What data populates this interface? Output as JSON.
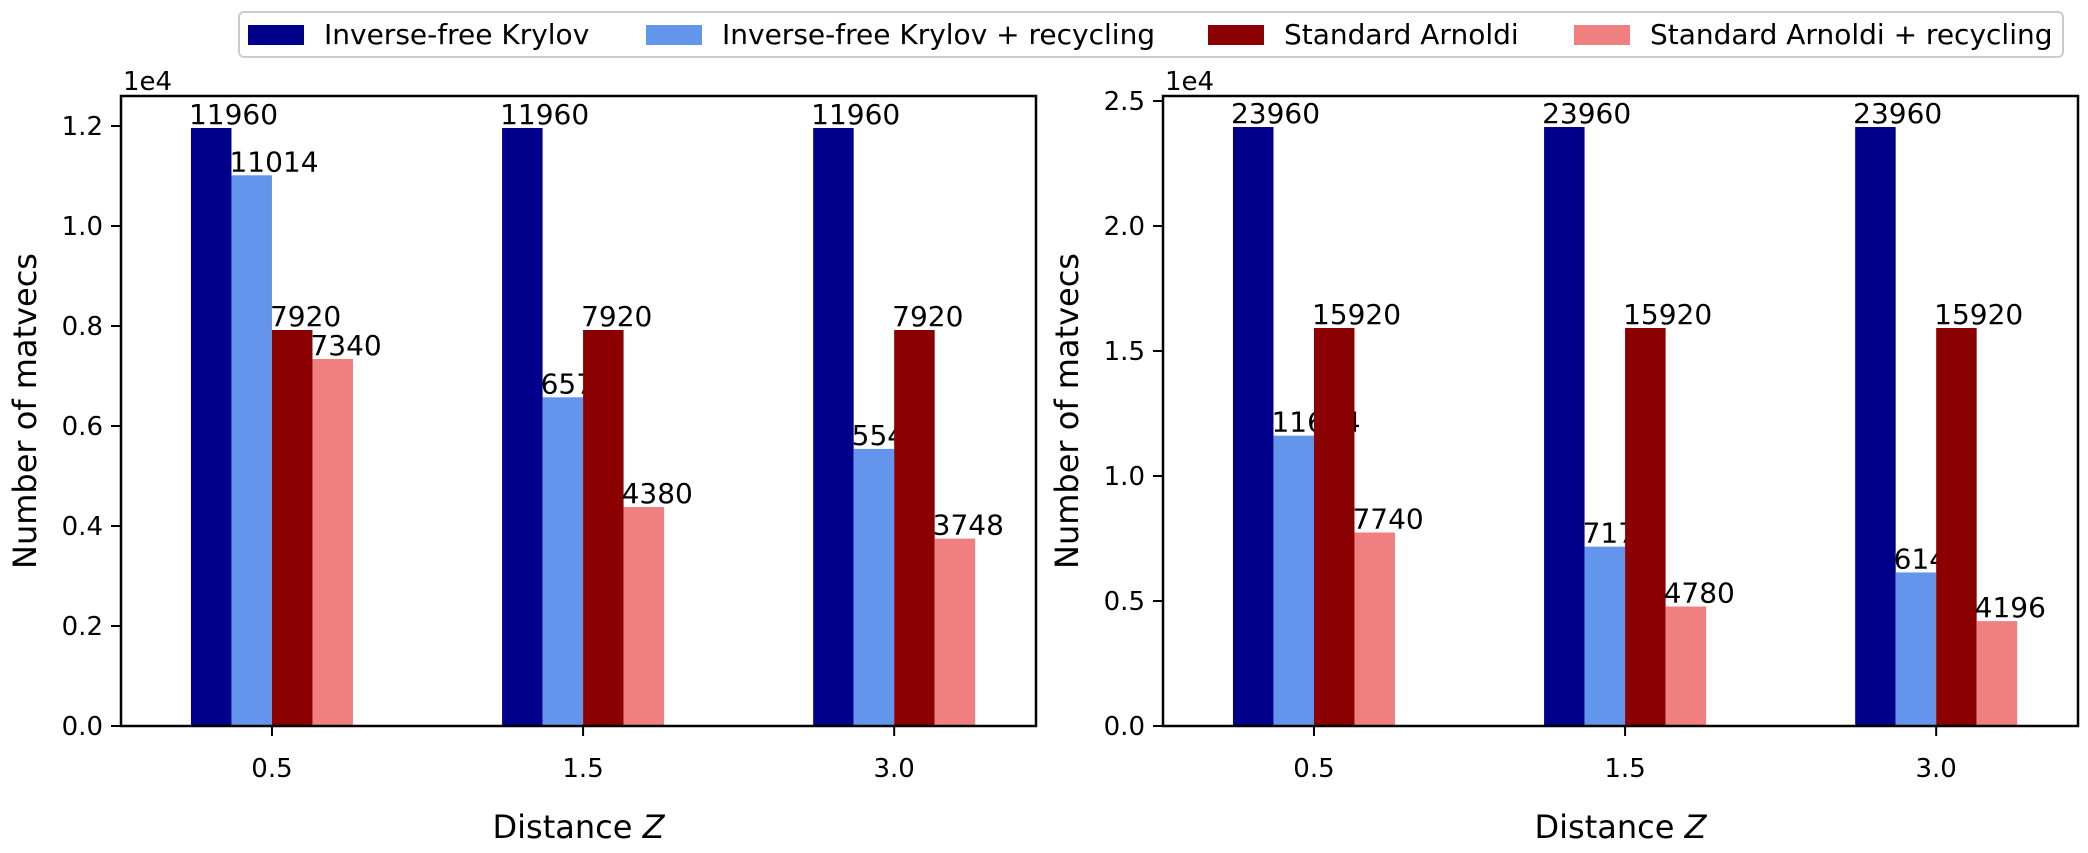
{
  "legend": [
    {
      "label": "Inverse-free Krylov",
      "color": "#00008b"
    },
    {
      "label": "Inverse-free Krylov + recycling",
      "color": "#6495ed"
    },
    {
      "label": "Standard Arnoldi",
      "color": "#8b0000"
    },
    {
      "label": "Standard Arnoldi + recycling",
      "color": "#f08080"
    }
  ],
  "chart_data": [
    {
      "type": "bar",
      "categories": [
        "0.5",
        "1.5",
        "3.0"
      ],
      "xlabel": "Distance Z",
      "ylabel": "Number of matvecs",
      "scale_label": "1e4",
      "ylim": [
        0,
        1.26
      ],
      "yticks": [
        0.0,
        0.2,
        0.4,
        0.6,
        0.8,
        1.0,
        1.2
      ],
      "series": [
        {
          "name": "Inverse-free Krylov",
          "values": [
            11960,
            11960,
            11960
          ]
        },
        {
          "name": "Inverse-free Krylov + recycling",
          "values": [
            11014,
            6574,
            5542
          ]
        },
        {
          "name": "Standard Arnoldi",
          "values": [
            7920,
            7920,
            7920
          ]
        },
        {
          "name": "Standard Arnoldi + recycling",
          "values": [
            7340,
            4380,
            3748
          ]
        }
      ]
    },
    {
      "type": "bar",
      "categories": [
        "0.5",
        "1.5",
        "3.0"
      ],
      "xlabel": "Distance Z",
      "ylabel": "Number of matvecs",
      "scale_label": "1e4",
      "ylim": [
        0,
        2.52
      ],
      "yticks": [
        0.0,
        0.5,
        1.0,
        1.5,
        2.0,
        2.5
      ],
      "series": [
        {
          "name": "Inverse-free Krylov",
          "values": [
            23960,
            23960,
            23960
          ]
        },
        {
          "name": "Inverse-free Krylov + recycling",
          "values": [
            11614,
            7174,
            6142
          ]
        },
        {
          "name": "Standard Arnoldi",
          "values": [
            15920,
            15920,
            15920
          ]
        },
        {
          "name": "Standard Arnoldi + recycling",
          "values": [
            7740,
            4780,
            4196
          ]
        }
      ]
    }
  ]
}
